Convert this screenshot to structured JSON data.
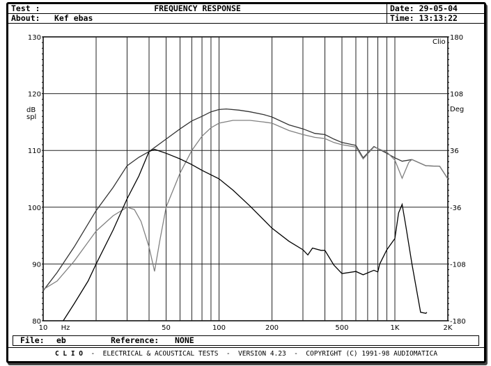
{
  "header": {
    "test_label": "Test :",
    "title": "FREQUENCY RESPONSE",
    "about_label": "About:",
    "about_value": "Kef ebas",
    "date_label": "Date:",
    "date_value": "29-05-04",
    "time_label": "Time:",
    "time_value": "13:13:22"
  },
  "file_bar": {
    "file_label": "File:",
    "file_value": "eb",
    "reference_label": "Reference:",
    "reference_value": "NONE"
  },
  "footer": {
    "brand": "C L I O",
    "text": "-  ELECTRICAL & ACOUSTICAL TESTS  -  VERSION 4.23  -  COPYRIGHT (C) 1991-98 AUDIOMATICA"
  },
  "chart_data": {
    "type": "line",
    "corner_label": "Clio",
    "xscale": "log",
    "xlim": [
      10,
      2000
    ],
    "xunit": "Hz",
    "xticks": [
      {
        "v": 10,
        "label": "10"
      },
      {
        "v": 50,
        "label": "50"
      },
      {
        "v": 100,
        "label": "100"
      },
      {
        "v": 200,
        "label": "200"
      },
      {
        "v": 500,
        "label": "500"
      },
      {
        "v": 1000,
        "label": "1K"
      },
      {
        "v": 2000,
        "label": "2K"
      }
    ],
    "xgrid": [
      20,
      30,
      40,
      50,
      60,
      70,
      80,
      90,
      100,
      200,
      300,
      400,
      500,
      600,
      700,
      800,
      900,
      1000
    ],
    "ylabel_left": [
      "dB",
      "spl"
    ],
    "ylim_left": [
      80,
      130
    ],
    "yticks_left": [
      130,
      120,
      110,
      100,
      90,
      80
    ],
    "ylabel_right": "Deg",
    "ylim_right": [
      -180,
      180
    ],
    "yticks_right": [
      180,
      108,
      36,
      -36,
      -108,
      -180
    ],
    "grid": true,
    "series": [
      {
        "axis": "left",
        "color": "#333333",
        "points": [
          [
            10,
            85.3
          ],
          [
            12,
            88.5
          ],
          [
            15,
            93
          ],
          [
            20,
            99.4
          ],
          [
            25,
            103.5
          ],
          [
            30,
            107.3
          ],
          [
            35,
            108.8
          ],
          [
            40,
            109.8
          ],
          [
            50,
            112
          ],
          [
            60,
            113.8
          ],
          [
            70,
            115.2
          ],
          [
            80,
            116
          ],
          [
            90,
            116.8
          ],
          [
            100,
            117.2
          ],
          [
            110,
            117.3
          ],
          [
            130,
            117.1
          ],
          [
            150,
            116.8
          ],
          [
            180,
            116.3
          ],
          [
            200,
            115.9
          ],
          [
            250,
            114.5
          ],
          [
            300,
            113.8
          ],
          [
            350,
            113
          ],
          [
            400,
            112.8
          ],
          [
            450,
            112
          ],
          [
            500,
            111.4
          ],
          [
            600,
            110.9
          ],
          [
            660,
            108.7
          ],
          [
            760,
            110.7
          ],
          [
            900,
            109.5
          ],
          [
            1000,
            108.7
          ],
          [
            1100,
            108.1
          ],
          [
            1250,
            108.4
          ],
          [
            1500,
            107.3
          ],
          [
            1800,
            107.2
          ],
          [
            2000,
            105
          ]
        ]
      },
      {
        "axis": "left",
        "color": "#808080",
        "points": [
          [
            10,
            85.5
          ],
          [
            12,
            87
          ],
          [
            15,
            90.5
          ],
          [
            20,
            95.8
          ],
          [
            25,
            98.5
          ],
          [
            30,
            100
          ],
          [
            33,
            99.6
          ],
          [
            36,
            97.5
          ],
          [
            40,
            93
          ],
          [
            43,
            88.7
          ],
          [
            46,
            94
          ],
          [
            50,
            100
          ],
          [
            60,
            106
          ],
          [
            70,
            110
          ],
          [
            80,
            112.5
          ],
          [
            90,
            114
          ],
          [
            100,
            114.8
          ],
          [
            120,
            115.3
          ],
          [
            150,
            115.3
          ],
          [
            180,
            115
          ],
          [
            200,
            114.8
          ],
          [
            250,
            113.5
          ],
          [
            300,
            112.8
          ],
          [
            350,
            112.3
          ],
          [
            400,
            112.1
          ],
          [
            450,
            111.4
          ],
          [
            500,
            111
          ],
          [
            600,
            110.6
          ],
          [
            660,
            108.5
          ],
          [
            760,
            110.6
          ],
          [
            900,
            109.7
          ],
          [
            1000,
            108.3
          ],
          [
            1100,
            105.1
          ],
          [
            1200,
            107.9
          ],
          [
            1250,
            108.4
          ],
          [
            1500,
            107.3
          ],
          [
            1800,
            107.2
          ],
          [
            2000,
            105
          ]
        ]
      },
      {
        "axis": "right",
        "color": "#000000",
        "points": [
          [
            13,
            -180
          ],
          [
            15,
            -158.4
          ],
          [
            18,
            -129.6
          ],
          [
            20,
            -108
          ],
          [
            25,
            -64.8
          ],
          [
            30,
            -25.2
          ],
          [
            35,
            3.6
          ],
          [
            40,
            34.6
          ],
          [
            43,
            37.4
          ],
          [
            50,
            32.4
          ],
          [
            60,
            25.2
          ],
          [
            70,
            18
          ],
          [
            80,
            10.8
          ],
          [
            100,
            0
          ],
          [
            120,
            -14.4
          ],
          [
            150,
            -34.6
          ],
          [
            200,
            -62.6
          ],
          [
            250,
            -79.2
          ],
          [
            300,
            -90
          ],
          [
            320,
            -96.5
          ],
          [
            340,
            -87.8
          ],
          [
            380,
            -90.7
          ],
          [
            400,
            -90.7
          ],
          [
            450,
            -109.4
          ],
          [
            500,
            -120.2
          ],
          [
            600,
            -117.4
          ],
          [
            660,
            -121.7
          ],
          [
            760,
            -115.9
          ],
          [
            800,
            -118.1
          ],
          [
            820,
            -108
          ],
          [
            900,
            -90
          ],
          [
            1000,
            -75.6
          ],
          [
            1050,
            -43.2
          ],
          [
            1100,
            -32.4
          ],
          [
            1150,
            -57.6
          ],
          [
            1250,
            -108
          ],
          [
            1400,
            -169.2
          ],
          [
            1500,
            -170.6
          ],
          [
            1520,
            -169.2
          ]
        ]
      }
    ]
  }
}
